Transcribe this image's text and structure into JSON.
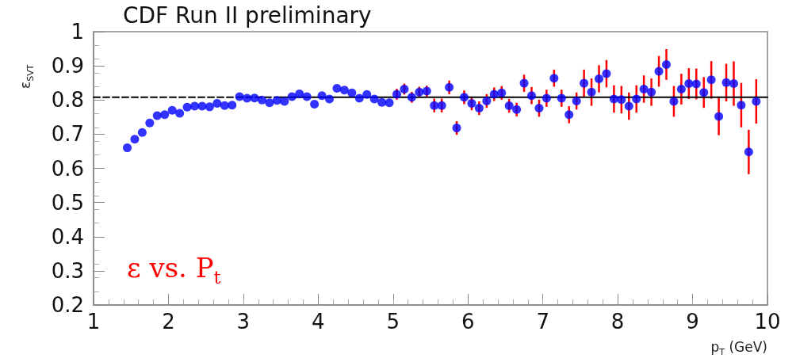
{
  "chart_data": {
    "type": "scatter",
    "title": "CDF Run II preliminary",
    "xlabel": "p$_{T}$ (GeV)",
    "ylabel": "ε$_{SVT}$",
    "annotations": [
      "ε vs. P$_{t}$"
    ],
    "xlim": [
      1,
      10
    ],
    "xticks": [
      1,
      2,
      3,
      4,
      5,
      6,
      7,
      8,
      9,
      10
    ],
    "ylim": [
      0.2,
      1
    ],
    "yticks": [
      0.2,
      0.3,
      0.4,
      0.5,
      0.6,
      0.7,
      0.8,
      0.9,
      1
    ],
    "grid": false,
    "marker": "circle",
    "series": [
      {
        "color": "#0000ff",
        "x": [
          1.45,
          1.55,
          1.65,
          1.75,
          1.85,
          1.95,
          2.05,
          2.15,
          2.25,
          2.35,
          2.45,
          2.55,
          2.65,
          2.75,
          2.85,
          2.95,
          3.05,
          3.15,
          3.25,
          3.35,
          3.45,
          3.55,
          3.65,
          3.75,
          3.85,
          3.95,
          4.05,
          4.15,
          4.25,
          4.35,
          4.45,
          4.55,
          4.65,
          4.75,
          4.85,
          4.95,
          5.05,
          5.15,
          5.25,
          5.35,
          5.45,
          5.55,
          5.65,
          5.75,
          5.85,
          5.95,
          6.05,
          6.15,
          6.25,
          6.35,
          6.45,
          6.55,
          6.65,
          6.75,
          6.85,
          6.95,
          7.05,
          7.15,
          7.25,
          7.35,
          7.45,
          7.55,
          7.65,
          7.75,
          7.85,
          7.95,
          8.05,
          8.15,
          8.25,
          8.35,
          8.45,
          8.55,
          8.65,
          8.75,
          8.85,
          8.95,
          9.05,
          9.15,
          9.25,
          9.35,
          9.45,
          9.55,
          9.65,
          9.75,
          9.85
        ],
        "values": [
          0.66,
          0.685,
          0.705,
          0.733,
          0.754,
          0.757,
          0.77,
          0.761,
          0.779,
          0.782,
          0.782,
          0.78,
          0.79,
          0.784,
          0.785,
          0.81,
          0.805,
          0.806,
          0.8,
          0.792,
          0.799,
          0.796,
          0.81,
          0.818,
          0.81,
          0.788,
          0.813,
          0.803,
          0.834,
          0.829,
          0.821,
          0.805,
          0.816,
          0.803,
          0.793,
          0.792,
          0.817,
          0.832,
          0.808,
          0.823,
          0.826,
          0.784,
          0.784,
          0.837,
          0.718,
          0.808,
          0.79,
          0.776,
          0.797,
          0.817,
          0.821,
          0.783,
          0.772,
          0.849,
          0.813,
          0.776,
          0.805,
          0.864,
          0.805,
          0.757,
          0.797,
          0.849,
          0.823,
          0.862,
          0.877,
          0.803,
          0.801,
          0.782,
          0.803,
          0.832,
          0.823,
          0.884,
          0.904,
          0.796,
          0.832,
          0.848,
          0.847,
          0.822,
          0.859,
          0.752,
          0.851,
          0.848,
          0.785,
          0.648,
          0.796
        ],
        "errors": [
          null,
          null,
          null,
          null,
          null,
          null,
          null,
          null,
          null,
          null,
          null,
          null,
          null,
          null,
          null,
          null,
          null,
          null,
          null,
          null,
          null,
          null,
          null,
          null,
          null,
          null,
          null,
          null,
          null,
          null,
          null,
          null,
          null,
          null,
          null,
          null,
          0.016,
          0.016,
          0.016,
          0.016,
          0.016,
          0.02,
          0.02,
          0.02,
          0.02,
          0.02,
          0.02,
          0.02,
          0.02,
          0.02,
          0.02,
          0.02,
          0.02,
          0.025,
          0.025,
          0.025,
          0.025,
          0.025,
          0.025,
          0.025,
          0.025,
          0.04,
          0.04,
          0.04,
          0.04,
          0.04,
          0.04,
          0.04,
          0.04,
          0.04,
          0.04,
          0.045,
          0.045,
          0.045,
          0.045,
          0.045,
          0.045,
          0.045,
          0.055,
          0.055,
          0.055,
          0.065,
          0.065,
          0.065,
          0.065
        ]
      },
      {
        "type": "line",
        "color": "#000000",
        "line_style": "dashed",
        "marker": "none",
        "x": [
          1,
          3.5
        ],
        "values": [
          0.808,
          0.808
        ]
      },
      {
        "type": "line",
        "color": "#000000",
        "line_style": "solid",
        "marker": "none",
        "x": [
          3.5,
          10
        ],
        "values": [
          0.808,
          0.808
        ]
      }
    ]
  }
}
